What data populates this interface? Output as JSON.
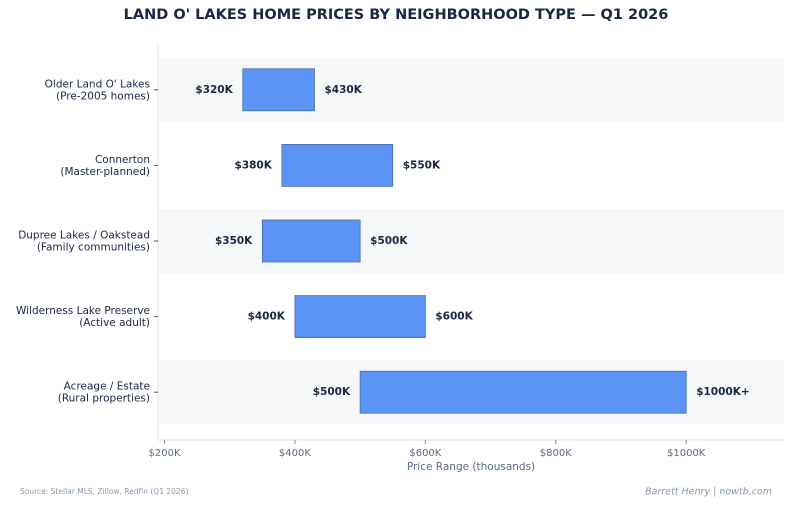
{
  "chart_data": {
    "type": "range-bar",
    "title": "LAND O' LAKES HOME PRICES BY NEIGHBORHOOD TYPE — Q1 2026",
    "categories": [
      "Older Land O' Lakes",
      "Connerton",
      "Dupree Lakes / Oakstead",
      "Wilderness Lake Preserve",
      "Acreage / Estate"
    ],
    "subcategories": [
      "(Pre-2005 homes)",
      "(Master-planned)",
      "(Family communities)",
      "(Active adult)",
      "(Rural properties)"
    ],
    "low": [
      320,
      380,
      350,
      400,
      500
    ],
    "high": [
      430,
      550,
      500,
      600,
      1000
    ],
    "low_labels": [
      "$320K",
      "$380K",
      "$350K",
      "$400K",
      "$500K"
    ],
    "high_labels": [
      "$430K",
      "$550K",
      "$500K",
      "$600K",
      "$1000K+"
    ],
    "color": "#5b94f5",
    "xlim": [
      190,
      1150
    ],
    "xticks": [
      {
        "value": 200,
        "label": "$200K"
      },
      {
        "value": 400,
        "label": "$400K"
      },
      {
        "value": 600,
        "label": "$600K"
      },
      {
        "value": 800,
        "label": "$800K"
      },
      {
        "value": 1000,
        "label": "$1000K"
      }
    ],
    "xlabel": "Price Range (thousands)",
    "source": "Source: Stellar MLS, Zillow, Redfin (Q1 2026)",
    "credit": "Barrett Henry | nowtb.com"
  }
}
